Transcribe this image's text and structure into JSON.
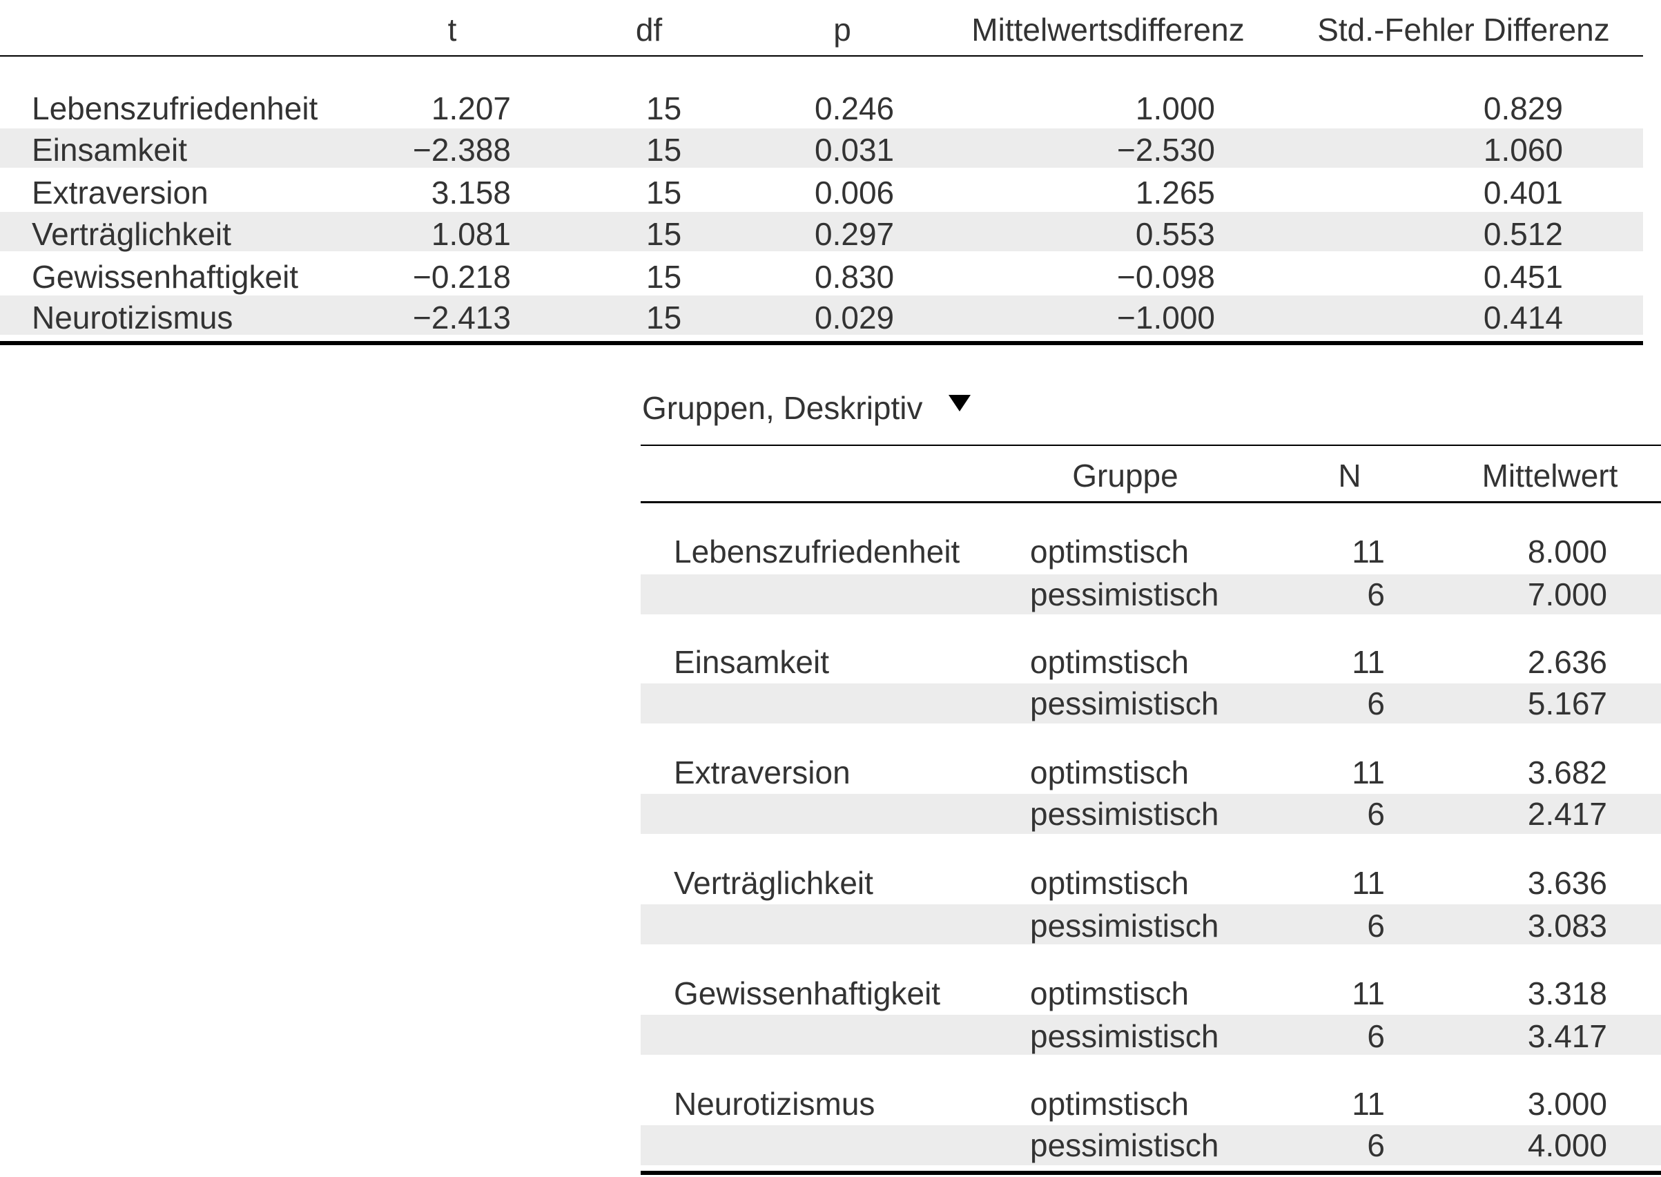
{
  "ttest": {
    "headers": {
      "t": "t",
      "df": "df",
      "p": "p",
      "md": "Mittelwertsdifferenz",
      "se": "Std.-Fehler Differenz"
    },
    "rows": [
      {
        "label": "Lebenszufriedenheit",
        "t": "1.207",
        "df": "15",
        "p": "0.246",
        "md": "1.000",
        "se": "0.829"
      },
      {
        "label": "Einsamkeit",
        "t": "−2.388",
        "df": "15",
        "p": "0.031",
        "md": "−2.530",
        "se": "1.060"
      },
      {
        "label": "Extraversion",
        "t": "3.158",
        "df": "15",
        "p": "0.006",
        "md": "1.265",
        "se": "0.401"
      },
      {
        "label": "Verträglichkeit",
        "t": "1.081",
        "df": "15",
        "p": "0.297",
        "md": "0.553",
        "se": "0.512"
      },
      {
        "label": "Gewissenhaftigkeit",
        "t": "−0.218",
        "df": "15",
        "p": "0.830",
        "md": "−0.098",
        "se": "0.451"
      },
      {
        "label": "Neurotizismus",
        "t": "−2.413",
        "df": "15",
        "p": "0.029",
        "md": "−1.000",
        "se": "0.414"
      }
    ]
  },
  "descriptives": {
    "title": "Gruppen, Deskriptiv",
    "toggle_icon": "caret-down-icon",
    "headers": {
      "gruppe": "Gruppe",
      "n": "N",
      "mean": "Mittelwert"
    },
    "blocks": [
      {
        "label": "Lebenszufriedenheit",
        "rows": [
          {
            "group": "optimstisch",
            "n": "11",
            "mean": "8.000"
          },
          {
            "group": "pessimistisch",
            "n": "6",
            "mean": "7.000"
          }
        ]
      },
      {
        "label": "Einsamkeit",
        "rows": [
          {
            "group": "optimstisch",
            "n": "11",
            "mean": "2.636"
          },
          {
            "group": "pessimistisch",
            "n": "6",
            "mean": "5.167"
          }
        ]
      },
      {
        "label": "Extraversion",
        "rows": [
          {
            "group": "optimstisch",
            "n": "11",
            "mean": "3.682"
          },
          {
            "group": "pessimistisch",
            "n": "6",
            "mean": "2.417"
          }
        ]
      },
      {
        "label": "Verträglichkeit",
        "rows": [
          {
            "group": "optimstisch",
            "n": "11",
            "mean": "3.636"
          },
          {
            "group": "pessimistisch",
            "n": "6",
            "mean": "3.083"
          }
        ]
      },
      {
        "label": "Gewissenhaftigkeit",
        "rows": [
          {
            "group": "optimstisch",
            "n": "11",
            "mean": "3.318"
          },
          {
            "group": "pessimistisch",
            "n": "6",
            "mean": "3.417"
          }
        ]
      },
      {
        "label": "Neurotizismus",
        "rows": [
          {
            "group": "optimstisch",
            "n": "11",
            "mean": "3.000"
          },
          {
            "group": "pessimistisch",
            "n": "6",
            "mean": "4.000"
          }
        ]
      }
    ]
  }
}
